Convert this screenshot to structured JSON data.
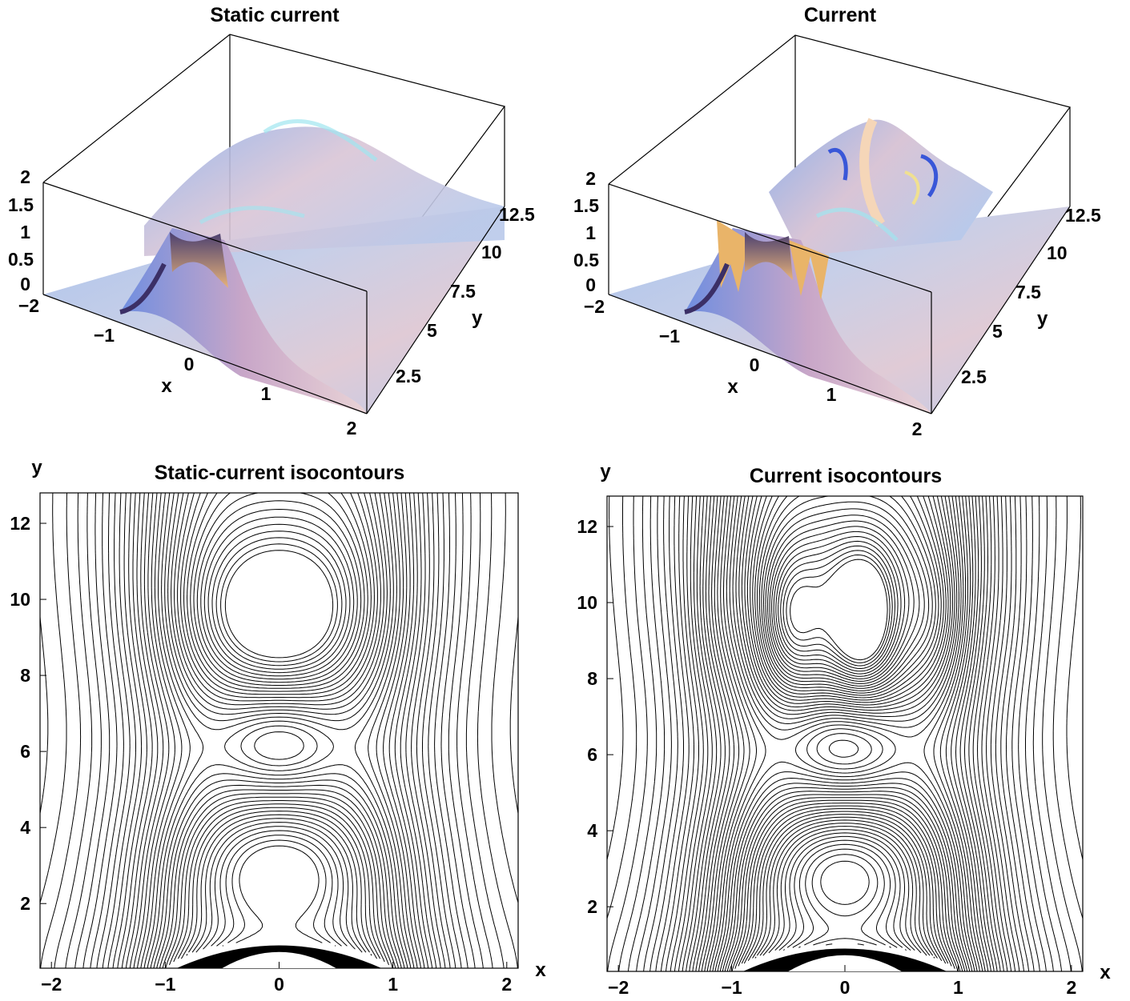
{
  "chart_data": [
    {
      "type": "surface3d",
      "title": "Static current",
      "xlabel": "x",
      "ylabel": "y",
      "x_ticks": [
        "−2",
        "−1",
        "0",
        "1",
        "2"
      ],
      "y_ticks": [
        "2.5",
        "5",
        "7.5",
        "10",
        "12.5"
      ],
      "z_ticks": [
        "0",
        "0.5",
        "1",
        "1.5",
        "2"
      ],
      "xlim": [
        -2,
        2
      ],
      "ylim": [
        0,
        12.7
      ],
      "zlim": [
        0,
        2
      ],
      "features": {
        "peaks": [
          [
            0,
            3
          ],
          [
            0,
            9.5
          ]
        ],
        "saddle": [
          0,
          6.3
        ],
        "obstacle_radius": 1
      },
      "colormap": "pastel light-blue to rose with yellow/cyan highlights"
    },
    {
      "type": "surface3d",
      "title": "Current",
      "xlabel": "x",
      "ylabel": "y",
      "x_ticks": [
        "−2",
        "−1",
        "0",
        "1",
        "2"
      ],
      "y_ticks": [
        "2.5",
        "5",
        "7.5",
        "10",
        "12.5"
      ],
      "z_ticks": [
        "0",
        "0.5",
        "1",
        "1.5",
        "2"
      ],
      "xlim": [
        -2,
        2
      ],
      "ylim": [
        0,
        12.7
      ],
      "zlim": [
        0,
        2
      ],
      "features": {
        "peaks": [
          [
            0,
            3
          ],
          [
            0,
            9.5
          ]
        ],
        "saddle": [
          0,
          6.3
        ],
        "obstacle_radius": 1
      },
      "colormap": "pastel light-blue to rose with yellow/cyan highlights"
    },
    {
      "type": "contour",
      "title": "Static-current isocontours",
      "xlabel": "x",
      "ylabel": "y",
      "x_ticks": [
        "−2",
        "−1",
        "0",
        "1",
        "2"
      ],
      "y_ticks": [
        "2",
        "4",
        "6",
        "8",
        "10",
        "12"
      ],
      "xlim": [
        -2.1,
        2.1
      ],
      "ylim": [
        0.3,
        12.8
      ],
      "features": {
        "centers": [
          [
            0,
            3
          ],
          [
            0,
            9.5
          ]
        ],
        "saddle": [
          0,
          6.3
        ]
      }
    },
    {
      "type": "contour",
      "title": "Current isocontours",
      "xlabel": "x",
      "ylabel": "y",
      "x_ticks": [
        "−2",
        "−1",
        "0",
        "1",
        "2"
      ],
      "y_ticks": [
        "2",
        "4",
        "6",
        "8",
        "10",
        "12"
      ],
      "xlim": [
        -2.1,
        2.1
      ],
      "ylim": [
        0.3,
        12.8
      ],
      "features": {
        "centers": [
          [
            0,
            3
          ],
          [
            0,
            9.5
          ]
        ],
        "saddle": [
          0,
          6.3
        ]
      }
    }
  ]
}
